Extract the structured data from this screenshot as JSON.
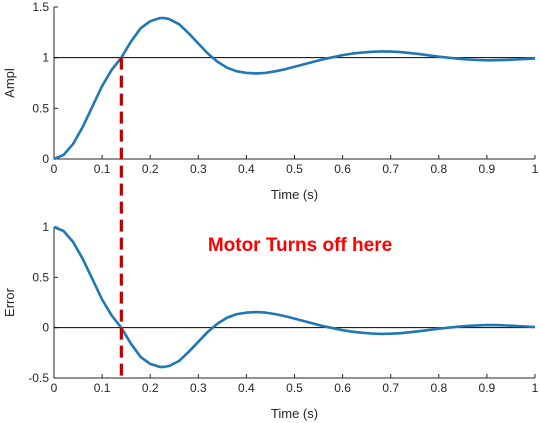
{
  "colors": {
    "curve": "#1f77b4",
    "reference": "#000000",
    "marker": "#c00000",
    "annotation": "#ff0000",
    "axes": "#262626"
  },
  "annotation": "Motor Turns off here",
  "marker_x": 0.14,
  "chart_data": [
    {
      "type": "line",
      "xlabel": "Time (s)",
      "ylabel": "Ampl",
      "xlim": [
        0,
        1
      ],
      "ylim": [
        0,
        1.5
      ],
      "xticks": [
        "0",
        "0.1",
        "0.2",
        "0.3",
        "0.4",
        "0.5",
        "0.6",
        "0.7",
        "0.8",
        "0.9",
        "1"
      ],
      "yticks": [
        "0",
        "0.5",
        "1",
        "1.5"
      ],
      "reference_line": 1,
      "grid": false,
      "x": [
        0,
        0.02,
        0.04,
        0.06,
        0.08,
        0.1,
        0.12,
        0.14,
        0.16,
        0.18,
        0.2,
        0.22,
        0.23,
        0.24,
        0.26,
        0.28,
        0.3,
        0.32,
        0.34,
        0.36,
        0.38,
        0.4,
        0.42,
        0.44,
        0.46,
        0.48,
        0.5,
        0.52,
        0.54,
        0.56,
        0.58,
        0.6,
        0.62,
        0.64,
        0.66,
        0.68,
        0.7,
        0.72,
        0.74,
        0.76,
        0.78,
        0.8,
        0.82,
        0.84,
        0.86,
        0.88,
        0.9,
        0.92,
        0.94,
        0.96,
        0.98,
        1.0
      ],
      "values": [
        0,
        0.04,
        0.15,
        0.32,
        0.52,
        0.72,
        0.88,
        1.0,
        1.16,
        1.29,
        1.36,
        1.39,
        1.39,
        1.38,
        1.33,
        1.24,
        1.14,
        1.04,
        0.96,
        0.9,
        0.865,
        0.85,
        0.845,
        0.85,
        0.865,
        0.885,
        0.91,
        0.935,
        0.96,
        0.985,
        1.005,
        1.025,
        1.04,
        1.05,
        1.058,
        1.062,
        1.06,
        1.055,
        1.045,
        1.035,
        1.022,
        1.01,
        1.0,
        0.99,
        0.982,
        0.977,
        0.974,
        0.975,
        0.978,
        0.982,
        0.988,
        0.993
      ]
    },
    {
      "type": "line",
      "xlabel": "Time (s)",
      "ylabel": "Error",
      "xlim": [
        0,
        1
      ],
      "ylim": [
        -0.5,
        1
      ],
      "xticks": [
        "0",
        "0.1",
        "0.2",
        "0.3",
        "0.4",
        "0.5",
        "0.6",
        "0.7",
        "0.8",
        "0.9",
        "1"
      ],
      "yticks": [
        "-0.5",
        "0",
        "0.5",
        "1"
      ],
      "reference_line": 0,
      "grid": false,
      "x": [
        0,
        0.02,
        0.04,
        0.06,
        0.08,
        0.1,
        0.12,
        0.14,
        0.16,
        0.18,
        0.2,
        0.22,
        0.23,
        0.24,
        0.26,
        0.28,
        0.3,
        0.32,
        0.34,
        0.36,
        0.38,
        0.4,
        0.42,
        0.44,
        0.46,
        0.48,
        0.5,
        0.52,
        0.54,
        0.56,
        0.58,
        0.6,
        0.62,
        0.64,
        0.66,
        0.68,
        0.7,
        0.72,
        0.74,
        0.76,
        0.78,
        0.8,
        0.82,
        0.84,
        0.86,
        0.88,
        0.9,
        0.92,
        0.94,
        0.96,
        0.98,
        1.0
      ],
      "values": [
        1.0,
        0.96,
        0.85,
        0.68,
        0.48,
        0.28,
        0.12,
        0.0,
        -0.16,
        -0.29,
        -0.36,
        -0.39,
        -0.39,
        -0.38,
        -0.33,
        -0.24,
        -0.14,
        -0.04,
        0.04,
        0.1,
        0.135,
        0.15,
        0.155,
        0.15,
        0.135,
        0.115,
        0.09,
        0.065,
        0.04,
        0.015,
        -0.005,
        -0.025,
        -0.04,
        -0.05,
        -0.058,
        -0.062,
        -0.06,
        -0.055,
        -0.045,
        -0.035,
        -0.022,
        -0.01,
        0.0,
        0.01,
        0.018,
        0.023,
        0.026,
        0.025,
        0.022,
        0.018,
        0.012,
        0.007
      ]
    }
  ]
}
